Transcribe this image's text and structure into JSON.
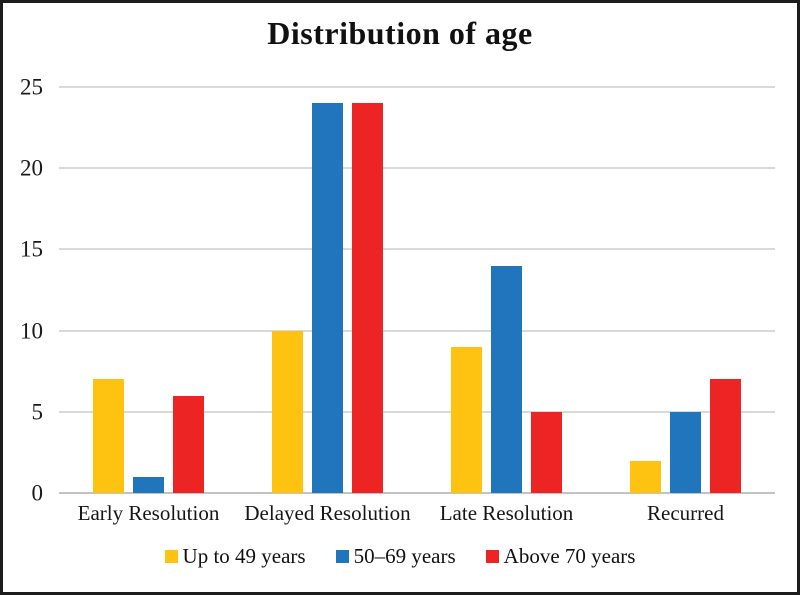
{
  "chart_data": {
    "type": "bar",
    "title": "Distribution of age",
    "categories": [
      "Early Resolution",
      "Delayed Resolution",
      "Late Resolution",
      "Recurred"
    ],
    "series": [
      {
        "name": "Up to 49 years",
        "color": "#FEC211",
        "values": [
          7,
          10,
          9,
          2
        ]
      },
      {
        "name": "50–69 years",
        "color": "#2175BC",
        "values": [
          1,
          24,
          14,
          5
        ]
      },
      {
        "name": "Above 70 years",
        "color": "#EC2424",
        "values": [
          6,
          24,
          5,
          7
        ]
      }
    ],
    "xlabel": "",
    "ylabel": "",
    "ylim": [
      0,
      25
    ],
    "yticks": [
      0,
      5,
      10,
      15,
      20,
      25
    ],
    "grid": true,
    "legend_position": "bottom"
  }
}
